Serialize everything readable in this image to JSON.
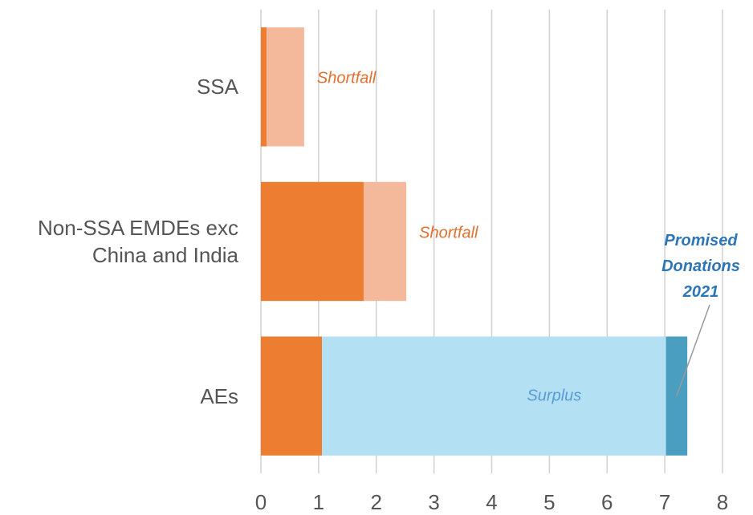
{
  "chart_data": {
    "type": "stacked_barh",
    "categories": [
      "SSA",
      "Non-SSA EMDEs exc China and India",
      "AEs"
    ],
    "series": [
      {
        "color": "#ED7D31",
        "values": [
          0.1,
          1.78,
          1.06
        ]
      },
      {
        "name": "Shortfall",
        "color": "#F4B99B",
        "label_color": "#E07030",
        "values": [
          0.65,
          0.74,
          null
        ]
      },
      {
        "name": "Surplus",
        "color": "#B3E0F2",
        "label_color": "#5B9BD5",
        "values": [
          null,
          null,
          5.96
        ]
      },
      {
        "name": "Promised Donations 2021",
        "color": "#4A9FC1",
        "label_color": "#2E75B6",
        "values": [
          null,
          null,
          0.37
        ]
      }
    ],
    "xlim": [
      0,
      8
    ],
    "xticks": [
      0,
      1,
      2,
      3,
      4,
      5,
      6,
      7,
      8
    ],
    "grid": true
  }
}
